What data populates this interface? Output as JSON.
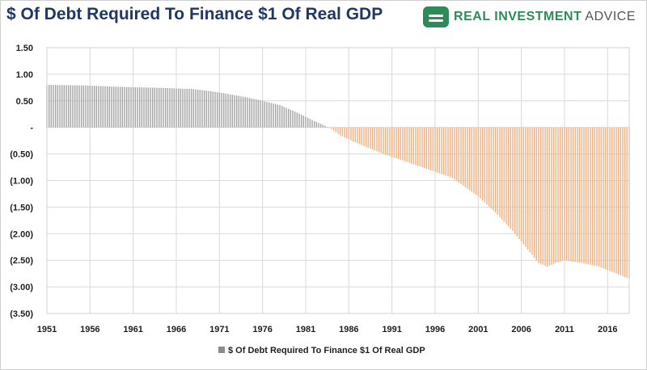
{
  "title": "$ Of Debt Required To Finance $1 Of Real GDP",
  "brand": {
    "name_part1": "REAL INVESTMENT",
    "name_part2": " ADVICE",
    "icon": "chat-bubble-icon",
    "color": "#2e8b57"
  },
  "chart_data": {
    "type": "bar",
    "title": "$ Of Debt Required To Finance $1 Of Real GDP",
    "xlabel": "",
    "ylabel": "",
    "x_range": [
      1951,
      2018.5
    ],
    "ylim": [
      -3.5,
      1.5
    ],
    "y_ticks": [
      1.5,
      1.0,
      0.5,
      0,
      -0.5,
      -1.0,
      -1.5,
      -2.0,
      -2.5,
      -3.0,
      -3.5
    ],
    "y_tick_labels": [
      "1.50",
      "1.00",
      "0.50",
      "-",
      "(0.50)",
      "(1.00)",
      "(1.50)",
      "(2.00)",
      "(2.50)",
      "(3.00)",
      "(3.50)"
    ],
    "x_ticks": [
      1951,
      1956,
      1961,
      1966,
      1971,
      1976,
      1981,
      1986,
      1991,
      1996,
      2001,
      2006,
      2011,
      2016
    ],
    "x_tick_labels": [
      "1951",
      "1956",
      "1961",
      "1966",
      "1971",
      "1976",
      "1981",
      "1986",
      "1991",
      "1996",
      "2001",
      "2006",
      "2011",
      "2016"
    ],
    "grid": true,
    "legend_position": "bottom-center",
    "positive_color": "#a6a6a6",
    "negative_color": "#f4b183",
    "series": [
      {
        "name": "$ Of Debt Required To Finance $1 Of Real GDP",
        "x": [
          1951,
          1955,
          1960,
          1965,
          1968,
          1970,
          1972,
          1974,
          1976,
          1978,
          1980,
          1982,
          1983,
          1984,
          1985,
          1987,
          1990,
          1994,
          1998,
          2001,
          2003,
          2005,
          2006,
          2007,
          2008,
          2009,
          2010,
          2011,
          2013,
          2015,
          2017,
          2018.5
        ],
        "values": [
          0.8,
          0.79,
          0.76,
          0.74,
          0.72,
          0.68,
          0.63,
          0.57,
          0.5,
          0.42,
          0.28,
          0.12,
          0.05,
          -0.03,
          -0.15,
          -0.3,
          -0.5,
          -0.72,
          -0.95,
          -1.3,
          -1.6,
          -1.95,
          -2.15,
          -2.35,
          -2.55,
          -2.62,
          -2.55,
          -2.5,
          -2.55,
          -2.62,
          -2.75,
          -2.85
        ]
      }
    ]
  }
}
